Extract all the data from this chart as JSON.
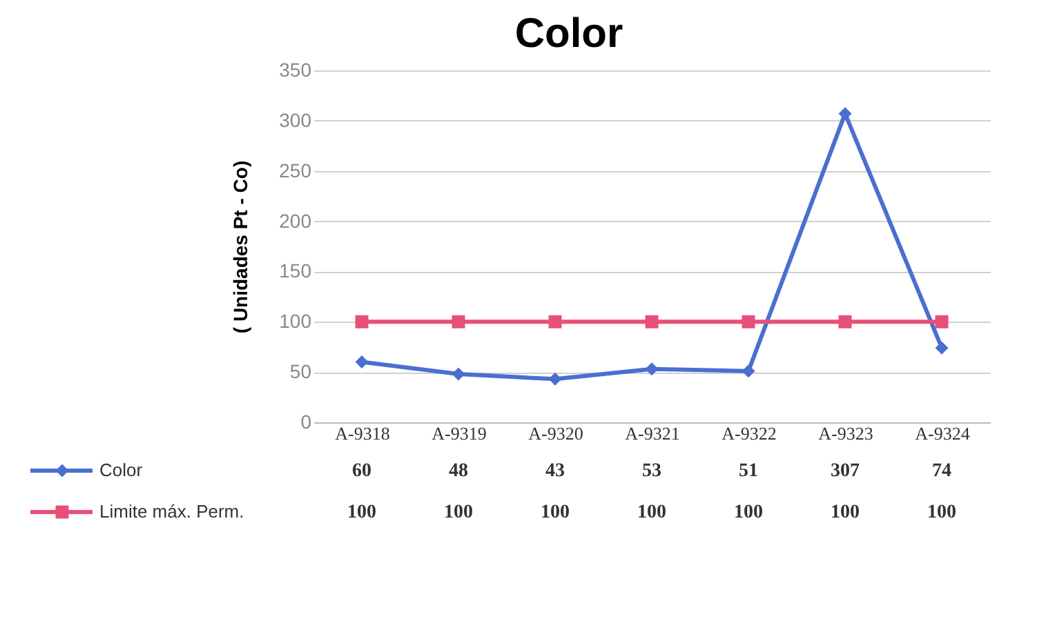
{
  "chart_data": {
    "type": "line",
    "title": "Color",
    "ylabel": "( Unidades Pt - Co)",
    "categories": [
      "A-9318",
      "A-9319",
      "A-9320",
      "A-9321",
      "A-9322",
      "A-9323",
      "A-9324"
    ],
    "series": [
      {
        "name": "Color",
        "color": "#4a6fd0",
        "marker": "diamond",
        "values": [
          60,
          48,
          43,
          53,
          51,
          307,
          74
        ]
      },
      {
        "name": "Limite máx. Perm.",
        "color": "#e8507a",
        "marker": "square",
        "values": [
          100,
          100,
          100,
          100,
          100,
          100,
          100
        ]
      }
    ],
    "ylim": [
      0,
      350
    ],
    "yticks": [
      0,
      50,
      100,
      150,
      200,
      250,
      300,
      350
    ],
    "grid": "y",
    "legend": "bottom",
    "data_labels": true
  }
}
